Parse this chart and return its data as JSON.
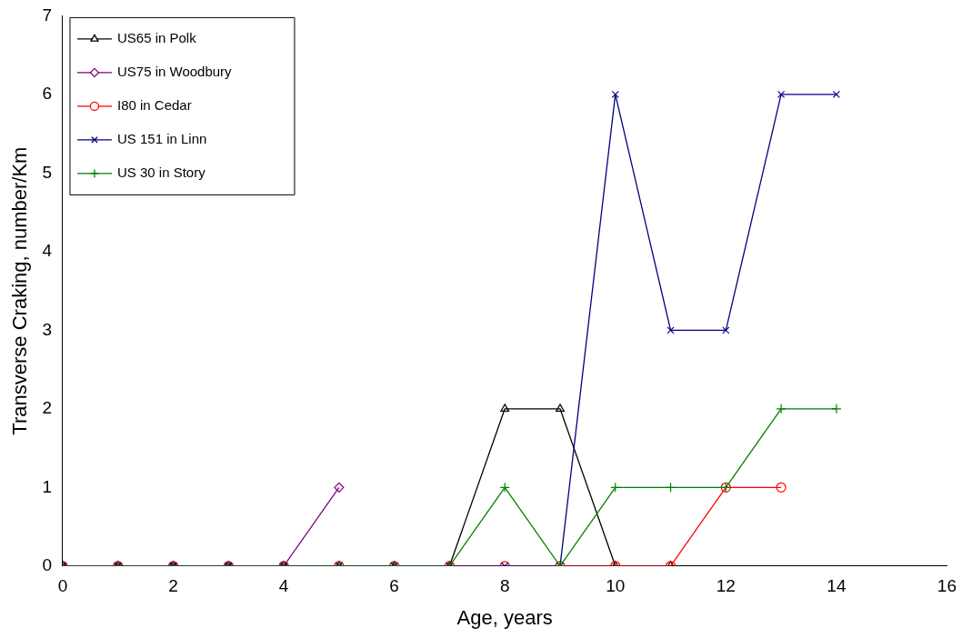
{
  "chart_data": {
    "type": "line",
    "xlabel": "Age, years",
    "ylabel": "Transverse Craking, number/Km",
    "xlim": [
      0,
      16
    ],
    "xticks": [
      0,
      2,
      4,
      6,
      8,
      10,
      12,
      14,
      16
    ],
    "ylim": [
      0,
      7
    ],
    "yticks": [
      0,
      1,
      2,
      3,
      4,
      5,
      6,
      7
    ],
    "grid": false,
    "legend": "top left",
    "series": [
      {
        "name": "US65 in Polk",
        "color": "#000000",
        "marker": "triangle",
        "x": [
          0,
          1,
          2,
          3,
          4,
          5,
          6,
          7,
          8,
          9,
          10,
          11
        ],
        "values": [
          0,
          0,
          0,
          0,
          0,
          0,
          0,
          0,
          2,
          2,
          0,
          0
        ]
      },
      {
        "name": "US75 in Woodbury",
        "color": "#800080",
        "marker": "diamond",
        "x": [
          0,
          1,
          2,
          3,
          4,
          5
        ],
        "values": [
          0,
          0,
          0,
          0,
          0,
          1
        ]
      },
      {
        "name": "I80 in Cedar",
        "color": "#ff0000",
        "marker": "circle",
        "x": [
          0,
          1,
          2,
          3,
          4,
          5,
          6,
          7,
          8,
          9,
          10,
          11,
          12,
          13
        ],
        "values": [
          0,
          0,
          0,
          0,
          0,
          0,
          0,
          0,
          0,
          0,
          0,
          0,
          1,
          1
        ]
      },
      {
        "name": "US 151 in Linn",
        "color": "#000080",
        "marker": "x",
        "x": [
          0,
          1,
          2,
          3,
          4,
          5,
          6,
          7,
          8,
          9,
          10,
          11,
          12,
          13,
          14
        ],
        "values": [
          0,
          0,
          0,
          0,
          0,
          0,
          0,
          0,
          0,
          0,
          6,
          3,
          3,
          6,
          6
        ]
      },
      {
        "name": "US 30 in Story",
        "color": "#008000",
        "marker": "cross",
        "x": [
          0,
          1,
          2,
          3,
          4,
          5,
          6,
          7,
          8,
          9,
          10,
          11,
          12,
          13,
          14
        ],
        "values": [
          0,
          0,
          0,
          0,
          0,
          0,
          0,
          0,
          1,
          0,
          1,
          1,
          1,
          2,
          2
        ]
      }
    ]
  }
}
